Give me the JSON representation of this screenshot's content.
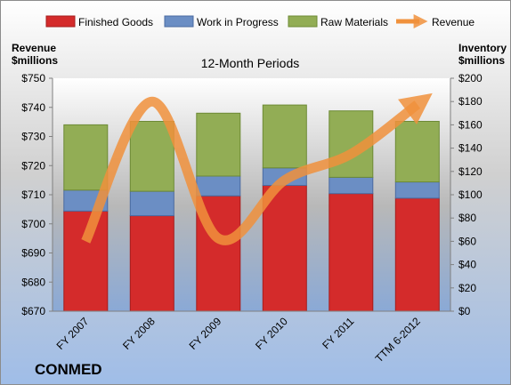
{
  "chart_data": {
    "type": "bar",
    "subtitle": "12-Month Periods",
    "company": "CONMED",
    "categories": [
      "FY 2007",
      "FY 2008",
      "FY 2009",
      "FY 2010",
      "FY 2011",
      "TTM 6-2012"
    ],
    "left_axis": {
      "title_line1": "Revenue",
      "title_line2": "$millions",
      "ylim": [
        670,
        750
      ],
      "ticks": [
        670,
        680,
        690,
        700,
        710,
        720,
        730,
        740,
        750
      ],
      "tick_labels": [
        "$670",
        "$680",
        "$690",
        "$700",
        "$710",
        "$720",
        "$730",
        "$740",
        "$750"
      ]
    },
    "right_axis": {
      "title_line1": "Inventory",
      "title_line2": "$millions",
      "ylim": [
        0,
        200
      ],
      "ticks": [
        0,
        20,
        40,
        60,
        80,
        100,
        120,
        140,
        160,
        180,
        200
      ],
      "tick_labels": [
        "$0",
        "$20",
        "$40",
        "$60",
        "$80",
        "$100",
        "$120",
        "$140",
        "$160",
        "$180",
        "$200"
      ]
    },
    "series": [
      {
        "name": "Finished Goods",
        "kind": "stacked-bar",
        "axis": "right",
        "color": "#d42b2b",
        "values": [
          86,
          82,
          99,
          108,
          101,
          97
        ]
      },
      {
        "name": "Work in Progress",
        "kind": "stacked-bar",
        "axis": "right",
        "color": "#6b8ec4",
        "values": [
          18,
          21,
          17,
          15,
          14,
          14
        ]
      },
      {
        "name": "Raw Materials",
        "kind": "stacked-bar",
        "axis": "right",
        "color": "#92ad55",
        "values": [
          56,
          60,
          54,
          54,
          57,
          52
        ]
      },
      {
        "name": "Revenue",
        "kind": "line",
        "axis": "left",
        "color": "#f0913c",
        "values": [
          694,
          742,
          695,
          715,
          724,
          741
        ]
      }
    ],
    "legend_position": "top",
    "grid": false
  }
}
